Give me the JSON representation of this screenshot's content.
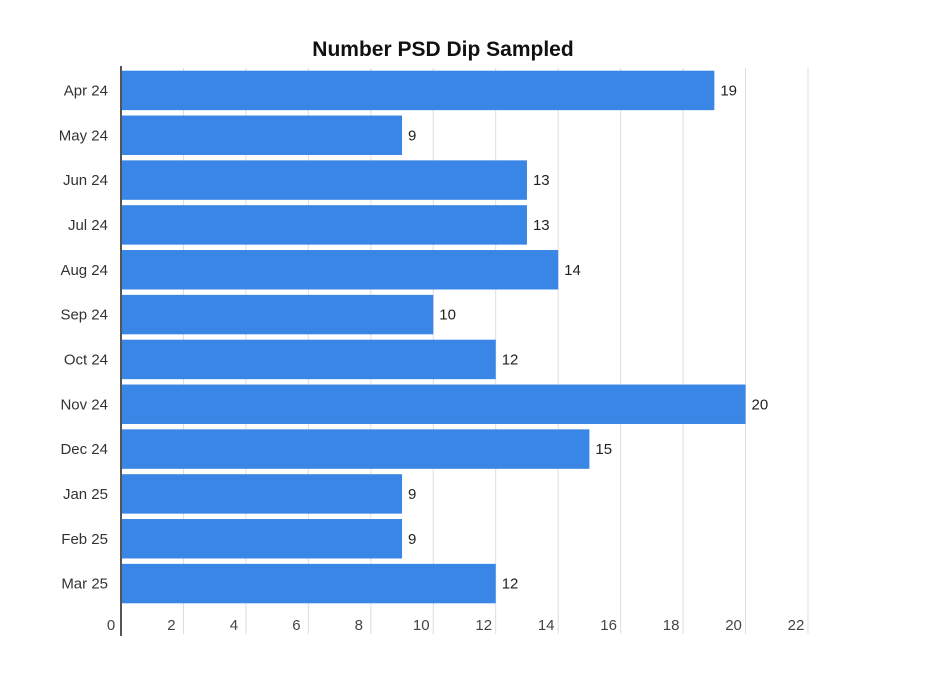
{
  "chart_data": {
    "type": "bar",
    "orientation": "horizontal",
    "title": "Number PSD Dip Sampled",
    "xlabel": "",
    "ylabel": "",
    "categories": [
      "Apr 24",
      "May 24",
      "Jun 24",
      "Jul 24",
      "Aug 24",
      "Sep 24",
      "Oct 24",
      "Nov 24",
      "Dec 24",
      "Jan 25",
      "Feb 25",
      "Mar 25"
    ],
    "values": [
      19,
      9,
      13,
      13,
      14,
      10,
      12,
      20,
      15,
      9,
      9,
      12
    ],
    "xlim": [
      0,
      22
    ],
    "xticks": [
      0,
      2,
      4,
      6,
      8,
      10,
      12,
      14,
      16,
      18,
      20,
      22
    ],
    "grid": true,
    "legend": "none",
    "bar_color": "#3a86e6"
  }
}
